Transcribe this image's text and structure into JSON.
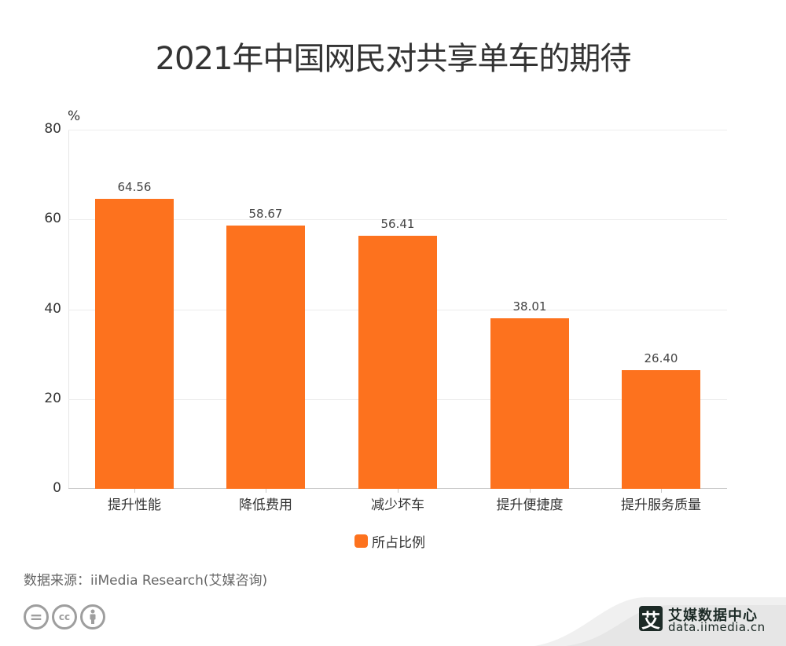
{
  "title": "2021年中国网民对共享单车的期待",
  "chart_data": {
    "type": "bar",
    "title": "2021年中国网民对共享单车的期待",
    "categories": [
      "提升性能",
      "降低费用",
      "减少坏车",
      "提升便捷度",
      "提升服务质量"
    ],
    "series": [
      {
        "name": "所占比例",
        "values": [
          64.56,
          58.67,
          56.41,
          38.01,
          26.4
        ],
        "color": "#fd721e"
      }
    ],
    "value_labels": [
      "64.56",
      "58.67",
      "56.41",
      "38.01",
      "26.40"
    ],
    "xlabel": "",
    "ylabel": "%",
    "ylim": [
      0,
      80
    ],
    "yticks": [
      0,
      20,
      40,
      60,
      80
    ],
    "grid": true,
    "legend_position": "bottom"
  },
  "axis": {
    "unit": "%",
    "yticks": [
      "80",
      "60",
      "40",
      "20",
      "0"
    ]
  },
  "legend": {
    "label": "所占比例",
    "color": "#fd721e"
  },
  "footer": {
    "source": "数据来源：iiMedia Research(艾媒咨询)",
    "cc_icons": [
      "cc-nd-icon",
      "cc-icon",
      "cc-by-icon"
    ],
    "cc_glyphs": [
      "=",
      "cc",
      "i"
    ]
  },
  "brand": {
    "logo_char": "艾",
    "name": "艾媒数据中心",
    "url": "data.iimedia.cn"
  }
}
